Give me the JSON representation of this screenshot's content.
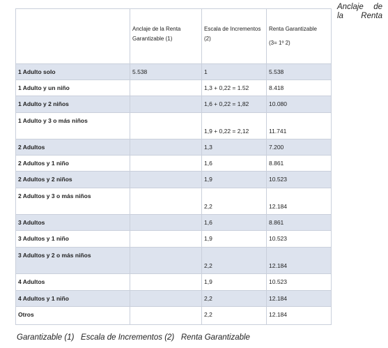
{
  "side_text": "Anclaje de la Renta",
  "footer_text": "Garantizable (1)   Escala de Incrementos (2)   Renta Garantizable",
  "table": {
    "header": [
      null,
      "Anclaje de la Renta Garantizable (1)",
      "Escala de Incrementos (2)",
      [
        "Renta Garantizable",
        "(3= 1º 2)"
      ]
    ],
    "rows": [
      [
        "1 Adulto solo",
        "5.538",
        "1",
        "5.538"
      ],
      [
        "1 Adulto y un niño",
        null,
        "1,3 + 0,22 = 1.52",
        "8.418"
      ],
      [
        "1 Adulto y 2 niños",
        null,
        "1,6 + 0,22 = 1,82",
        "10.080"
      ],
      [
        "1 Adulto y 3 o más niños",
        null,
        "1,9 + 0,22 = 2,12",
        "11.741"
      ],
      [
        "2 Adultos",
        null,
        "1,3",
        "7.200"
      ],
      [
        "2 Adultos y 1 niño",
        null,
        "1,6",
        "8.861"
      ],
      [
        "2 Adultos y 2 niños",
        null,
        "1,9",
        "10.523"
      ],
      [
        "2 Adultos y 3 o más niños",
        null,
        "2,2",
        "12.184"
      ],
      [
        "3 Adultos",
        null,
        "1,6",
        "8.861"
      ],
      [
        "3 Adultos y 1 niño",
        null,
        "1,9",
        "10.523"
      ],
      [
        "3 Adultos y 2  o más niños",
        null,
        "2,2",
        "12.184"
      ],
      [
        "4 Adultos",
        null,
        "1,9",
        "10.523"
      ],
      [
        "4 Adultos y 1 niño",
        null,
        "2,2",
        "12.184"
      ],
      [
        "Otros",
        null,
        "2,2",
        "12.184"
      ]
    ]
  }
}
